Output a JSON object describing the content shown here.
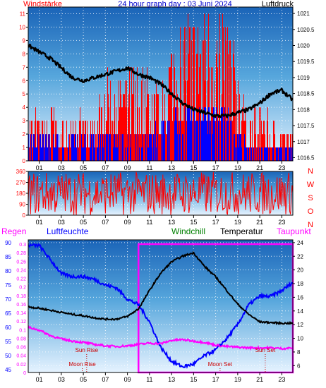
{
  "chart_data": [
    {
      "type": "line",
      "panel": "wind-pressure",
      "title": "24 hour graph day : 03 Juni 2024",
      "left_label": "Windstärke",
      "right_label": "Luftdruck",
      "x_ticks": [
        "01",
        "03",
        "05",
        "07",
        "09",
        "11",
        "13",
        "15",
        "17",
        "19",
        "21",
        "23"
      ],
      "y_left_ticks": [
        "0",
        "1",
        "2",
        "3",
        "4",
        "5",
        "6",
        "7",
        "8",
        "9",
        "10",
        "11"
      ],
      "y_left_range": [
        0,
        11.5
      ],
      "y_right_ticks": [
        "1016.5",
        "1017",
        "1017.5",
        "1018",
        "1018.5",
        "1019",
        "1019.5",
        "1020",
        "1020.5",
        "1021"
      ],
      "y_right_range": [
        1016.4,
        1021.2
      ],
      "series": [
        {
          "kind": "wind-gust",
          "color": "#ff0000",
          "hours": [
            0,
            1,
            2,
            3,
            4,
            5,
            6,
            7,
            8,
            9,
            10,
            11,
            12,
            13,
            14,
            15,
            16,
            17,
            18,
            19,
            20,
            21,
            22,
            23,
            24
          ],
          "values": [
            4,
            3,
            4,
            3,
            4,
            3,
            3,
            6,
            6,
            6,
            7,
            6,
            5,
            9,
            11,
            10,
            11,
            10,
            11,
            6,
            3,
            4,
            3,
            2,
            2
          ]
        },
        {
          "kind": "wind-speed",
          "color": "#0000ff",
          "hours": [
            0,
            1,
            2,
            3,
            4,
            5,
            6,
            7,
            8,
            9,
            10,
            11,
            12,
            13,
            14,
            15,
            16,
            17,
            18,
            19,
            20,
            21,
            22,
            23,
            24
          ],
          "values": [
            2,
            2,
            2,
            2,
            2,
            2,
            2,
            2,
            2,
            2,
            2,
            2,
            3,
            4,
            4,
            4,
            4,
            4,
            4,
            2,
            1,
            1,
            1,
            1,
            1
          ]
        },
        {
          "kind": "pressure",
          "color": "#000000",
          "hours": [
            0,
            1,
            2,
            3,
            4,
            5,
            6,
            7,
            8,
            9,
            10,
            11,
            12,
            13,
            14,
            15,
            16,
            17,
            18,
            19,
            20,
            21,
            22,
            23,
            24
          ],
          "values": [
            1020.0,
            1019.8,
            1019.6,
            1019.3,
            1019.0,
            1018.9,
            1019.0,
            1019.1,
            1019.2,
            1019.3,
            1019.1,
            1019.0,
            1018.8,
            1018.5,
            1018.2,
            1018.0,
            1017.9,
            1017.8,
            1017.8,
            1017.9,
            1018.0,
            1018.2,
            1018.5,
            1018.6,
            1018.3
          ]
        }
      ]
    },
    {
      "type": "line",
      "panel": "wind-direction",
      "y_ticks": [
        "0",
        "90",
        "180",
        "270",
        "360"
      ],
      "y_range": [
        0,
        360
      ],
      "direction_letters": [
        "N",
        "W",
        "S",
        "O",
        "N"
      ],
      "series": [
        {
          "kind": "direction",
          "color": "#ff0000",
          "range": [
            0,
            360
          ],
          "samples_per_hour": 14
        }
      ]
    },
    {
      "type": "line",
      "panel": "temperature-humidity",
      "labels": {
        "regen": "Regen",
        "luftfeuchte": "Luftfeuchte",
        "windchill": "Windchill",
        "temperatur": "Temperatur",
        "taupunkt": "Taupunkt"
      },
      "label_colors": {
        "regen": "#0000ff",
        "luftfeuchte": "#0000ff",
        "windchill": "#008000",
        "temperatur": "#000000",
        "taupunkt": "#ff00ff"
      },
      "x_ticks": [
        "01",
        "03",
        "05",
        "07",
        "09",
        "11",
        "13",
        "15",
        "17",
        "19",
        "21",
        "23"
      ],
      "rain_ticks": [
        "0",
        "0.02",
        "0.04",
        "0.06",
        "0.08",
        "0.1",
        "0.12",
        "0.14",
        "0.16",
        "0.18",
        "0.2",
        "0.22",
        "0.24",
        "0.26",
        "0.28",
        "0.3"
      ],
      "rain_range": [
        0,
        0.31
      ],
      "humidity_ticks": [
        "45",
        "50",
        "55",
        "60",
        "65",
        "70",
        "75",
        "80",
        "85",
        "90"
      ],
      "humidity_range": [
        44,
        91
      ],
      "temp_ticks": [
        "6",
        "8",
        "10",
        "12",
        "14",
        "16",
        "18",
        "20",
        "22",
        "24"
      ],
      "temp_range": [
        5,
        24.4
      ],
      "series": [
        {
          "kind": "temperature",
          "color": "#000000",
          "hours": [
            0,
            1,
            2,
            3,
            4,
            5,
            6,
            7,
            8,
            9,
            10,
            11,
            12,
            13,
            14,
            15,
            16,
            17,
            18,
            19,
            20,
            21,
            22,
            23,
            24
          ],
          "values": [
            14.6,
            14.4,
            14.1,
            13.8,
            13.5,
            13.3,
            13.0,
            12.8,
            12.8,
            13.2,
            14.3,
            17.0,
            19.5,
            21.2,
            22.0,
            22.5,
            20.5,
            19.0,
            17.0,
            15.0,
            13.5,
            12.4,
            12.3,
            12.2,
            12.2
          ]
        },
        {
          "kind": "humidity",
          "color": "#0000ff",
          "hours": [
            0,
            1,
            2,
            3,
            4,
            5,
            6,
            7,
            8,
            9,
            10,
            11,
            12,
            13,
            14,
            15,
            16,
            17,
            18,
            19,
            20,
            21,
            22,
            23,
            24
          ],
          "values": [
            89,
            89,
            84,
            79,
            78,
            78,
            77,
            75,
            74,
            70,
            68,
            62,
            53,
            48,
            46,
            47,
            50,
            52,
            56,
            61,
            68,
            71,
            71,
            73,
            76
          ]
        },
        {
          "kind": "dewpoint",
          "color": "#ff00ff",
          "hours": [
            0,
            1,
            2,
            3,
            4,
            5,
            6,
            7,
            8,
            9,
            10,
            11,
            12,
            13,
            14,
            15,
            16,
            17,
            18,
            19,
            20,
            21,
            22,
            23,
            24
          ],
          "values": [
            11.6,
            11.2,
            10.4,
            9.9,
            9.6,
            9.4,
            9.1,
            8.9,
            8.8,
            8.9,
            9.1,
            9.3,
            9.2,
            9.7,
            9.8,
            9.6,
            9.4,
            9.0,
            8.8,
            8.7,
            8.6,
            8.6,
            8.6,
            8.5,
            8.6
          ]
        },
        {
          "kind": "rain",
          "color": "#ff00ff",
          "total": 0.3,
          "from_hour": 10,
          "to_hour": 24
        }
      ],
      "annotations": [
        {
          "text": "Sun Rise",
          "hour": 5.3,
          "color": "#cc0000"
        },
        {
          "text": "Moon Rise",
          "hour": 4.9,
          "color": "#cc0000"
        },
        {
          "text": "Sun Set",
          "hour": 21.5,
          "color": "#cc0000"
        },
        {
          "text": "Moon Set",
          "hour": 17.4,
          "color": "#cc0000"
        }
      ]
    }
  ]
}
